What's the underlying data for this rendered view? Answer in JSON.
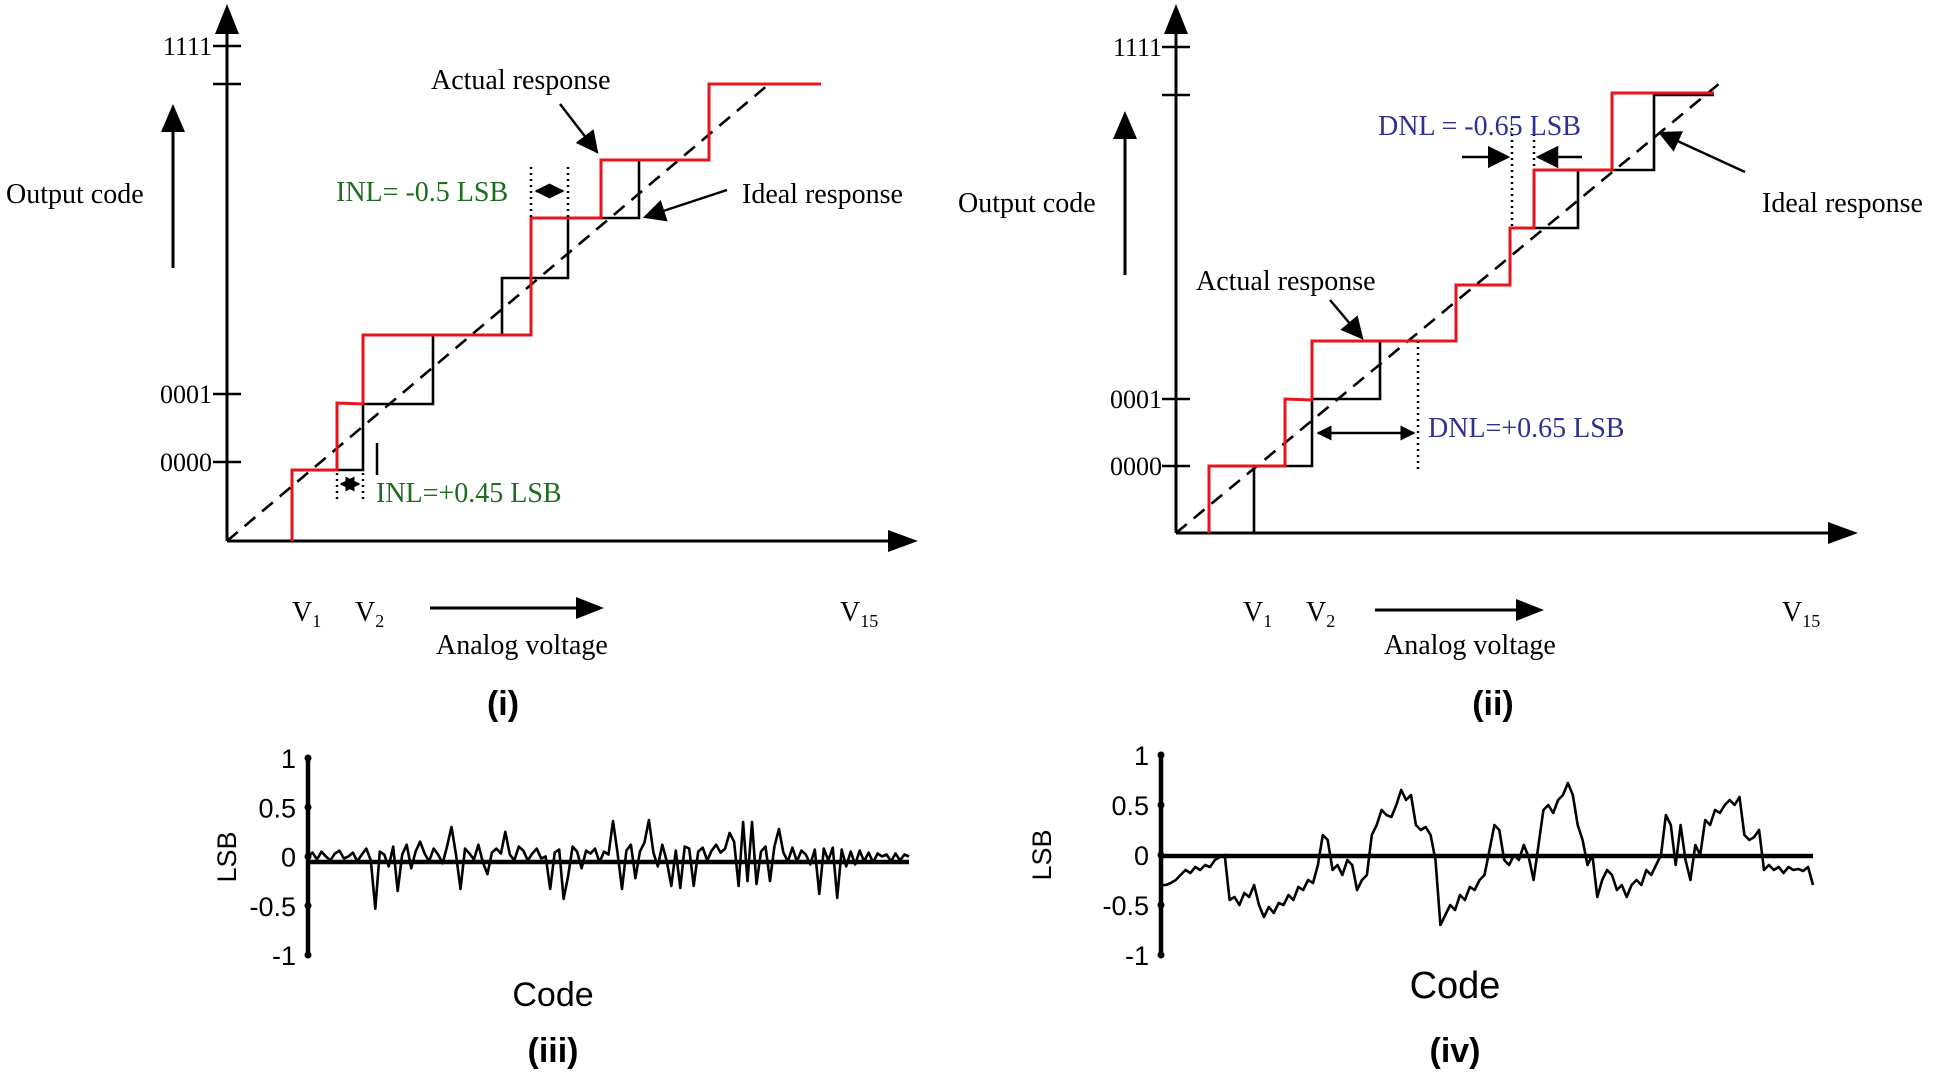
{
  "chart_data": [
    {
      "id": "i",
      "type": "line",
      "panel_label": "(i)",
      "title": "",
      "ylabel": "Output code",
      "xlabel": "Analog voltage",
      "y_ticks": [
        "1111",
        "0001",
        "0000"
      ],
      "x_ticks": [
        "V1",
        "V2",
        "V15"
      ],
      "x_tick_parts": [
        [
          "V",
          "1"
        ],
        [
          "V",
          "2"
        ],
        [
          "V",
          "15"
        ]
      ],
      "annotations": {
        "actual": "Actual response",
        "ideal": "Ideal response",
        "inl_neg": "INL= -0.5 LSB",
        "inl_pos": "INL=+0.45 LSB"
      },
      "annotation_colors": {
        "inl": "#1f6b1f"
      },
      "series": [
        {
          "name": "Ideal response",
          "style": "staircase",
          "color": "#000000",
          "transitions_lsb": [
            1,
            1.5,
            2.5,
            3.5,
            4.5,
            5.5,
            6.5
          ]
        },
        {
          "name": "Actual response",
          "style": "staircase",
          "color": "#e8141c",
          "transitions_lsb": [
            0.5,
            1.05,
            1.5,
            3.0,
            3.5,
            5.0,
            6.5,
            7.5
          ]
        },
        {
          "name": "Ideal transfer line",
          "style": "dashed",
          "color": "#000000"
        }
      ]
    },
    {
      "id": "ii",
      "type": "line",
      "panel_label": "(ii)",
      "title": "",
      "ylabel": "Output code",
      "xlabel": "Analog voltage",
      "y_ticks": [
        "1111",
        "0001",
        "0000"
      ],
      "x_ticks": [
        "V1",
        "V2",
        "V15"
      ],
      "x_tick_parts": [
        [
          "V",
          "1"
        ],
        [
          "V",
          "2"
        ],
        [
          "V",
          "15"
        ]
      ],
      "annotations": {
        "actual": "Actual response",
        "ideal": "Ideal response",
        "dnl_neg": "DNL = -0.65 LSB",
        "dnl_pos": "DNL=+0.65 LSB"
      },
      "annotation_colors": {
        "dnl": "#2e3192"
      },
      "series": [
        {
          "name": "Ideal response",
          "style": "staircase",
          "color": "#000000"
        },
        {
          "name": "Actual response",
          "style": "staircase",
          "color": "#e8141c"
        },
        {
          "name": "Ideal transfer line",
          "style": "dashed",
          "color": "#000000"
        }
      ]
    },
    {
      "id": "iii",
      "type": "line",
      "panel_label": "(iii)",
      "title": "",
      "xlabel": "Code",
      "ylabel": "LSB",
      "ylim": [
        -1,
        1
      ],
      "y_ticks": [
        "1",
        "0.5",
        "0",
        "-0.5",
        "-1"
      ],
      "y_tick_values": [
        1,
        0.5,
        0,
        -0.5,
        -1
      ],
      "series": [
        {
          "name": "DNL",
          "values": [
            0,
            0.04,
            -0.03,
            0.05,
            0,
            -0.04,
            0.03,
            0.06,
            -0.02,
            0,
            0.04,
            -0.05,
            0.02,
            0.08,
            -0.04,
            -0.53,
            0.05,
            0.02,
            -0.1,
            0.1,
            -0.35,
            0.02,
            0.12,
            -0.12,
            0.05,
            0.15,
            0.03,
            -0.05,
            0.08,
            0.02,
            -0.07,
            0.1,
            0.3,
            0.02,
            -0.33,
            0.08,
            0.03,
            -0.03,
            0.12,
            -0.06,
            -0.18,
            0.04,
            0.08,
            0.03,
            0.25,
            0.02,
            -0.04,
            0.1,
            0.06,
            -0.04,
            0.03,
            0.08,
            -0.02,
            0,
            -0.33,
            0.04,
            0.07,
            -0.43,
            -0.2,
            0.1,
            0.05,
            -0.12,
            0.06,
            0.03,
            0.08,
            -0.06,
            0.05,
            0.02,
            0.36,
            0.04,
            -0.33,
            0.06,
            0.12,
            -0.22,
            0.05,
            0.14,
            0.37,
            0.04,
            -0.1,
            0.12,
            -0.05,
            -0.3,
            0.06,
            -0.32,
            0.1,
            0.08,
            -0.3,
            0.05,
            0.09,
            -0.04,
            0.06,
            0.12,
            0.04,
            0.08,
            0.24,
            0.15,
            -0.3,
            0.35,
            -0.25,
            0.35,
            -0.28,
            0.05,
            0.1,
            -0.25,
            0.1,
            0.28,
            0.04,
            -0.05,
            0.09,
            -0.05,
            0.06,
            0.02,
            -0.08,
            0.07,
            -0.38,
            0.08,
            -0.04,
            0.09,
            -0.42,
            0.07,
            -0.1,
            0.05,
            -0.08,
            0.06,
            -0.05,
            0.04,
            -0.06,
            0.03,
            0,
            0.02,
            -0.05,
            0.03,
            -0.04,
            0.02,
            0
          ]
        }
      ]
    },
    {
      "id": "iv",
      "type": "line",
      "panel_label": "(iv)",
      "title": "",
      "xlabel": "Code",
      "ylabel": "LSB",
      "ylim": [
        -1,
        1
      ],
      "y_ticks": [
        "1",
        "0.5",
        "0",
        "-0.5",
        "-1"
      ],
      "y_tick_values": [
        1,
        0.5,
        0,
        -0.5,
        -1
      ],
      "series": [
        {
          "name": "INL",
          "values": [
            -0.3,
            -0.3,
            -0.28,
            -0.25,
            -0.2,
            -0.15,
            -0.18,
            -0.12,
            -0.15,
            -0.1,
            -0.12,
            -0.05,
            -0.02,
            0,
            -0.45,
            -0.42,
            -0.5,
            -0.38,
            -0.42,
            -0.3,
            -0.5,
            -0.62,
            -0.52,
            -0.58,
            -0.48,
            -0.5,
            -0.4,
            -0.45,
            -0.32,
            -0.35,
            -0.25,
            -0.28,
            -0.1,
            0.2,
            0.15,
            -0.15,
            -0.1,
            -0.2,
            -0.05,
            -0.1,
            -0.35,
            -0.25,
            -0.2,
            0.2,
            0.3,
            0.45,
            0.4,
            0.38,
            0.5,
            0.65,
            0.55,
            0.6,
            0.3,
            0.25,
            0.28,
            0.2,
            -0.05,
            -0.7,
            -0.6,
            -0.5,
            -0.55,
            -0.4,
            -0.45,
            -0.32,
            -0.35,
            -0.25,
            -0.2,
            0.05,
            0.3,
            0.25,
            -0.05,
            -0.1,
            0,
            -0.05,
            0.1,
            -0.02,
            -0.25,
            0.1,
            0.45,
            0.5,
            0.42,
            0.55,
            0.6,
            0.72,
            0.6,
            0.3,
            0.15,
            -0.1,
            0,
            -0.42,
            -0.25,
            -0.15,
            -0.2,
            -0.35,
            -0.3,
            -0.42,
            -0.3,
            -0.25,
            -0.3,
            -0.15,
            -0.2,
            -0.1,
            0,
            0.4,
            0.3,
            -0.1,
            0.3,
            -0.05,
            -0.25,
            0.1,
            0,
            0.35,
            0.3,
            0.45,
            0.42,
            0.5,
            0.55,
            0.5,
            0.58,
            0.2,
            0.15,
            0.18,
            0.25,
            -0.15,
            -0.1,
            -0.15,
            -0.12,
            -0.18,
            -0.12,
            -0.15,
            -0.14,
            -0.16,
            -0.12,
            -0.3
          ]
        }
      ]
    }
  ]
}
